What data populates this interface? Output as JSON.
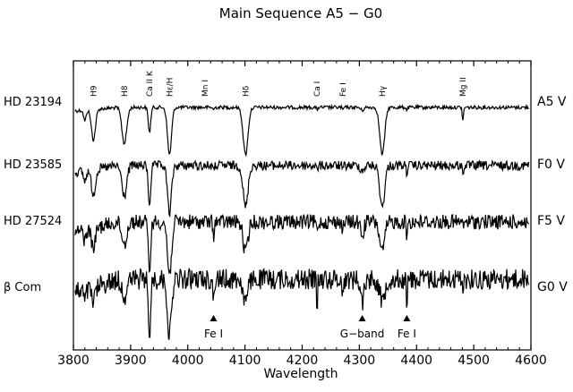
{
  "chart_data": {
    "type": "line",
    "title": "Main Sequence A5 − G0",
    "xlabel": "Wavelength",
    "ylabel": "",
    "xlim": [
      3800,
      4600
    ],
    "xticks": [
      3800,
      3900,
      4000,
      4100,
      4200,
      4300,
      4400,
      4500,
      4600
    ],
    "grid": false,
    "legend": "none",
    "series": [
      {
        "star": "HD 23194",
        "class": "A5 V"
      },
      {
        "star": "HD 23585",
        "class": "F0 V"
      },
      {
        "star": "HD 27524",
        "class": "F5 V"
      },
      {
        "star": "β Com",
        "class": "G0 V"
      }
    ],
    "line_labels": [
      {
        "text": "H9",
        "x": 3835
      },
      {
        "text": "H8",
        "x": 3889
      },
      {
        "text": "Ca II K",
        "x": 3933
      },
      {
        "text": "Hε/H",
        "x": 3968
      },
      {
        "text": "Mn I",
        "x": 4030
      },
      {
        "text": "Hδ",
        "x": 4101
      },
      {
        "text": "Ca I",
        "x": 4226
      },
      {
        "text": "Fe I",
        "x": 4271
      },
      {
        "text": "Hγ",
        "x": 4340
      },
      {
        "text": "Mg II",
        "x": 4481
      }
    ],
    "feature_markers": [
      {
        "text": "Fe I",
        "x": 4045
      },
      {
        "text": "G−band",
        "x": 4305
      },
      {
        "text": "Fe I",
        "x": 4383
      }
    ]
  }
}
